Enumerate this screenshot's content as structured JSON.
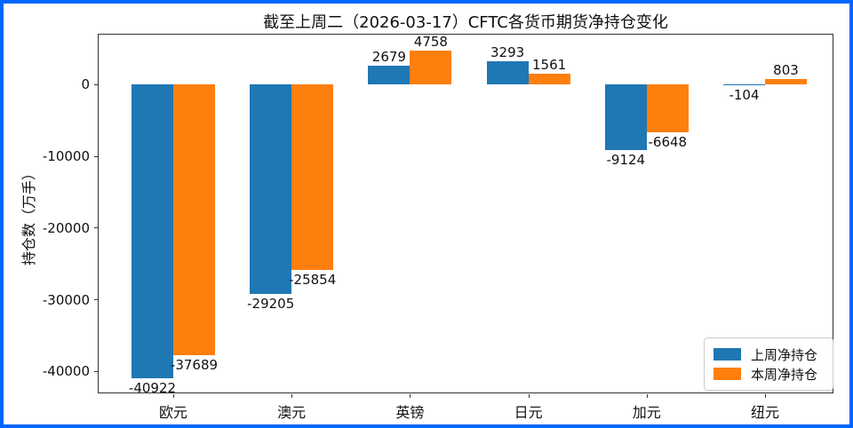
{
  "window": {
    "border_color": "#0066ff",
    "background": "#ffffff"
  },
  "chart_data": {
    "type": "bar",
    "title": "截至上周二（2026-03-17）CFTC各货币期货净持仓变化",
    "xlabel": "",
    "ylabel": "持仓数（万手）",
    "categories": [
      "欧元",
      "澳元",
      "英镑",
      "日元",
      "加元",
      "纽元"
    ],
    "series": [
      {
        "name": "上周净持仓",
        "color": "#1f77b4",
        "values": [
          -40922,
          -29205,
          2679,
          3293,
          -9124,
          -104
        ]
      },
      {
        "name": "本周净持仓",
        "color": "#ff7f0e",
        "values": [
          -37689,
          -25854,
          4758,
          1561,
          -6648,
          803
        ]
      }
    ],
    "yticks": [
      0,
      -10000,
      -20000,
      -30000,
      -40000
    ],
    "ylim": [
      -43200,
      7000
    ],
    "grid": false,
    "legend_position": "lower right",
    "value_labels": true
  }
}
